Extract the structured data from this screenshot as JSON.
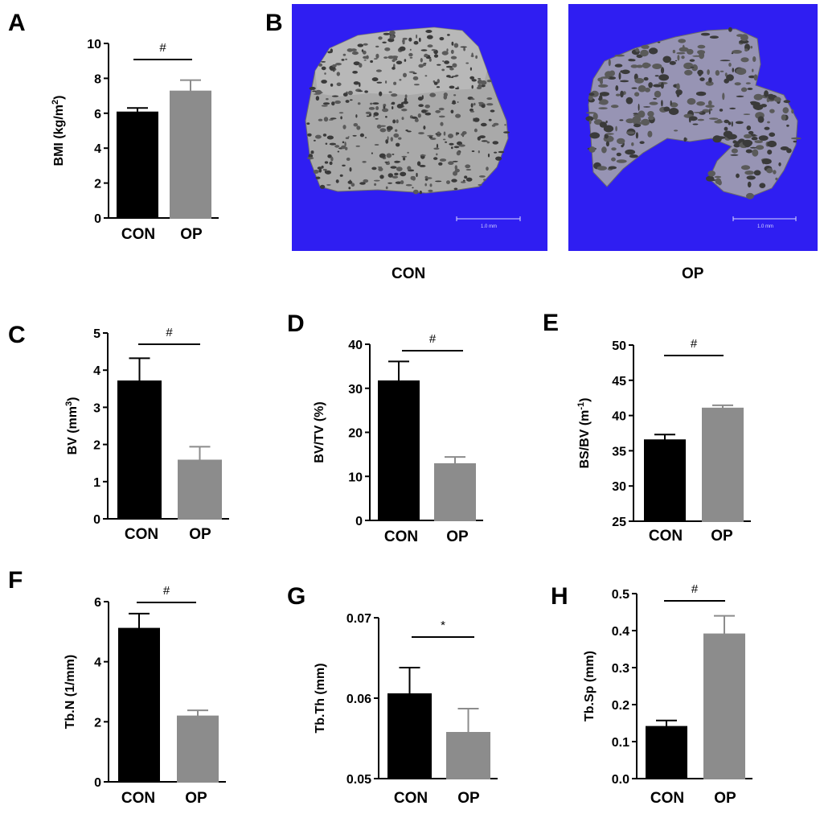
{
  "colors": {
    "con": "#000000",
    "op": "#8c8c8c",
    "image_bg": "#2f1ef2",
    "bone": "#a9a9a9"
  },
  "images": {
    "letter": "B",
    "items": [
      {
        "label": "CON",
        "scale_text": "1.0 mm"
      },
      {
        "label": "OP",
        "scale_text": "1.0 mm"
      }
    ]
  },
  "chart_data": [
    {
      "id": "A",
      "type": "bar",
      "categories": [
        "CON",
        "OP"
      ],
      "values": [
        6.05,
        7.25
      ],
      "errors": [
        0.25,
        0.65
      ],
      "ylabel": [
        "BMI (kg/m",
        "2",
        ")"
      ],
      "ylim": [
        0,
        10
      ],
      "ticks": [
        "0",
        "2",
        "4",
        "6",
        "8",
        "10"
      ],
      "sig": "#"
    },
    {
      "id": "C",
      "type": "bar",
      "categories": [
        "CON",
        "OP"
      ],
      "values": [
        3.7,
        1.57
      ],
      "errors": [
        0.62,
        0.37
      ],
      "ylabel": [
        "BV  (mm",
        "3",
        ")"
      ],
      "ylim": [
        0,
        5
      ],
      "ticks": [
        "0",
        "1",
        "2",
        "3",
        "4",
        "5"
      ],
      "sig": "#"
    },
    {
      "id": "D",
      "type": "bar",
      "categories": [
        "CON",
        "OP"
      ],
      "values": [
        31.6,
        12.8
      ],
      "errors": [
        4.5,
        1.6
      ],
      "ylabel": [
        "BV/TV (%)",
        "",
        ""
      ],
      "ylim": [
        0,
        40
      ],
      "ticks": [
        "0",
        "10",
        "20",
        "30",
        "40"
      ],
      "sig": "#"
    },
    {
      "id": "E",
      "type": "bar",
      "categories": [
        "CON",
        "OP"
      ],
      "values": [
        36.5,
        41.0
      ],
      "errors": [
        0.8,
        0.45
      ],
      "ylabel": [
        "BS/BV  (m",
        "-1",
        ")"
      ],
      "ylim": [
        25,
        50
      ],
      "ticks": [
        "25",
        "30",
        "35",
        "40",
        "45",
        "50"
      ],
      "sig": "#"
    },
    {
      "id": "F",
      "type": "bar",
      "categories": [
        "CON",
        "OP"
      ],
      "values": [
        5.1,
        2.18
      ],
      "errors": [
        0.5,
        0.2
      ],
      "ylabel": [
        "Tb.N (1/mm)",
        "",
        ""
      ],
      "ylim": [
        0,
        6
      ],
      "ticks": [
        "0",
        "2",
        "4",
        "6"
      ],
      "sig": "#"
    },
    {
      "id": "G",
      "type": "bar",
      "categories": [
        "CON",
        "OP"
      ],
      "values": [
        0.0605,
        0.0557
      ],
      "errors": [
        0.0033,
        0.003
      ],
      "ylabel": [
        "Tb.Th (mm)",
        "",
        ""
      ],
      "ylim": [
        0.05,
        0.07
      ],
      "ticks": [
        "0.05",
        "0.06",
        "0.07"
      ],
      "sig": "*"
    },
    {
      "id": "H",
      "type": "bar",
      "categories": [
        "CON",
        "OP"
      ],
      "values": [
        0.14,
        0.39
      ],
      "errors": [
        0.017,
        0.05
      ],
      "ylabel": [
        "Tb.Sp  (mm)",
        "",
        ""
      ],
      "ylim": [
        0,
        0.5
      ],
      "ticks": [
        "0.0",
        "0.1",
        "0.2",
        "0.3",
        "0.4",
        "0.5"
      ],
      "sig": "#"
    }
  ]
}
